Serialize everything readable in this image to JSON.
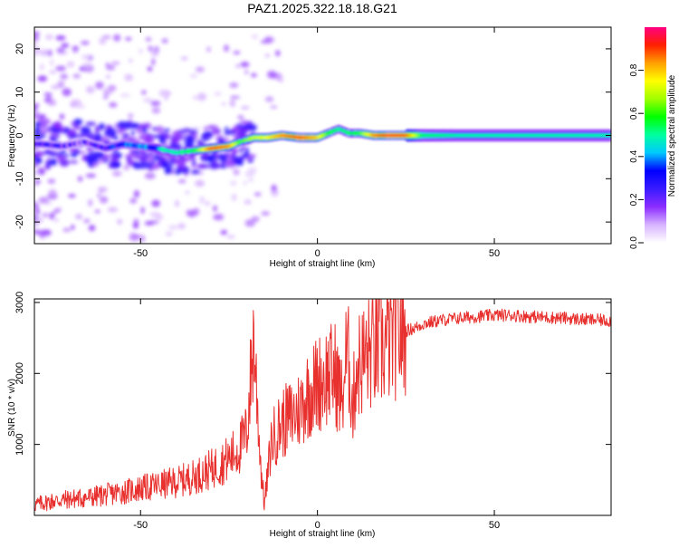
{
  "chart_data": [
    {
      "type": "heatmap",
      "title": "PAZ1.2025.322.18.18.G21",
      "xlabel": "Height of straight line (km)",
      "ylabel": "Frequency (Hz)",
      "xlim": [
        -80,
        83
      ],
      "ylim": [
        -25,
        25
      ],
      "x_ticks": [
        -50,
        0,
        50
      ],
      "y_ticks": [
        -20,
        -10,
        0,
        10,
        20
      ],
      "colorbar": {
        "label": "Normalized spectral amplitude",
        "range": [
          0,
          1
        ],
        "ticks": [
          "0.0",
          "0.2",
          "0.4",
          "0.6",
          "0.8"
        ],
        "colors": [
          "#ffffff",
          "#d8b4ff",
          "#8b2cff",
          "#3a1bff",
          "#0000ff",
          "#00c8ff",
          "#00ffa0",
          "#00ff00",
          "#a0ff00",
          "#ffff00",
          "#ffa000",
          "#ff2000",
          "#ff0080"
        ]
      },
      "ridge": {
        "x": [
          -78,
          -72,
          -66,
          -60,
          -55,
          -50,
          -45,
          -40,
          -35,
          -30,
          -25,
          -22,
          -18,
          -14,
          -10,
          -5,
          0,
          3,
          6,
          9,
          12,
          16,
          20,
          25,
          30,
          40,
          50,
          60,
          70,
          83
        ],
        "frequency": [
          -2,
          -2.5,
          -1.5,
          -3,
          -2,
          -2.5,
          -3,
          -4,
          -3.5,
          -3,
          -2.5,
          -1.5,
          -0.5,
          -0.5,
          0,
          -0.5,
          -0.5,
          0.5,
          1.5,
          0.5,
          0.5,
          0,
          0,
          0,
          0,
          0,
          0,
          0,
          0,
          0
        ],
        "amplitude": [
          0.3,
          0.3,
          0.25,
          0.35,
          0.4,
          0.45,
          0.5,
          0.5,
          0.55,
          0.9,
          0.85,
          0.6,
          0.7,
          0.75,
          0.85,
          0.9,
          0.8,
          0.6,
          0.5,
          0.55,
          0.6,
          0.85,
          0.95,
          0.9,
          0.55,
          0.5,
          0.5,
          0.5,
          0.5,
          0.5
        ]
      }
    },
    {
      "type": "line",
      "xlabel": "Height of straight line (km)",
      "ylabel": "SNR (10 * v/v)",
      "xlim": [
        -80,
        83
      ],
      "ylim": [
        0,
        3050
      ],
      "x_ticks": [
        -50,
        0,
        50
      ],
      "y_ticks": [
        1000,
        2000,
        3000
      ],
      "color": "#e8312e",
      "x": [
        -80,
        -75,
        -70,
        -65,
        -60,
        -55,
        -50,
        -45,
        -40,
        -35,
        -30,
        -25,
        -22,
        -20,
        -18,
        -16,
        -15,
        -13,
        -10,
        -7,
        -5,
        -3,
        0,
        2,
        5,
        7,
        8,
        9,
        10,
        11,
        13,
        15,
        18,
        20,
        22,
        25,
        28,
        30,
        35,
        40,
        45,
        50,
        55,
        60,
        65,
        70,
        75,
        80,
        83
      ],
      "y": [
        150,
        200,
        230,
        250,
        290,
        330,
        380,
        420,
        470,
        540,
        650,
        800,
        950,
        1150,
        2500,
        700,
        150,
        1050,
        1300,
        1400,
        1500,
        1700,
        1850,
        1950,
        2000,
        1600,
        2200,
        2150,
        1500,
        2100,
        2200,
        2300,
        2350,
        2450,
        2550,
        2600,
        2650,
        2700,
        2750,
        2780,
        2800,
        2820,
        2820,
        2800,
        2790,
        2780,
        2760,
        2750,
        2740
      ]
    }
  ]
}
